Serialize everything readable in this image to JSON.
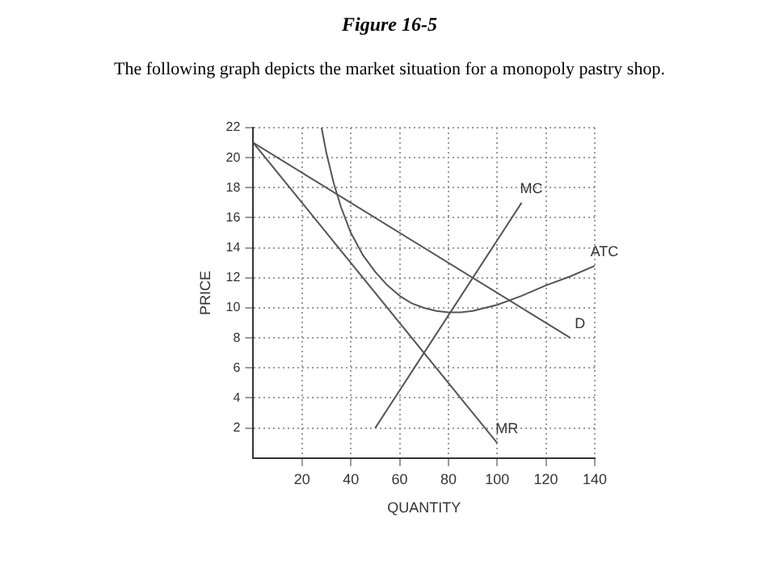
{
  "chart_data": {
    "type": "line",
    "title": "Figure 16-5",
    "subtitle": "The following graph depicts the market situation for a monopoly pastry shop.",
    "xlabel": "QUANTITY",
    "ylabel": "PRICE",
    "xlim": [
      0,
      140
    ],
    "ylim": [
      0,
      22
    ],
    "xticks": [
      20,
      40,
      60,
      80,
      100,
      120,
      140
    ],
    "yticks": [
      2,
      4,
      6,
      8,
      10,
      12,
      14,
      16,
      18,
      20,
      22
    ],
    "grid": true,
    "legend": false,
    "marker": "none",
    "line_style": "solid",
    "series": [
      {
        "name": "MC",
        "color": "#555555",
        "x": [
          50,
          110
        ],
        "values": [
          2,
          17
        ]
      },
      {
        "name": "ATC",
        "color": "#555555",
        "x": [
          28,
          30,
          33,
          36,
          40,
          45,
          50,
          55,
          60,
          65,
          70,
          75,
          80,
          85,
          90,
          95,
          100,
          110,
          120,
          130,
          140
        ],
        "values": [
          22,
          20.3,
          18.3,
          16.7,
          15,
          13.5,
          12.4,
          11.5,
          10.8,
          10.3,
          10,
          9.8,
          9.7,
          9.7,
          9.8,
          10,
          10.2,
          10.8,
          11.5,
          12.1,
          12.8
        ]
      },
      {
        "name": "D",
        "color": "#555555",
        "x": [
          0,
          130
        ],
        "values": [
          21,
          8
        ]
      },
      {
        "name": "MR",
        "color": "#555555",
        "x": [
          0,
          100
        ],
        "values": [
          21,
          1
        ]
      }
    ]
  }
}
